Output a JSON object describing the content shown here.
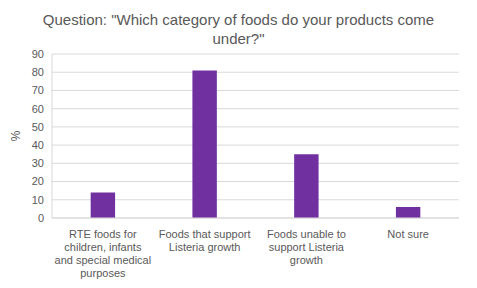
{
  "chart_data": {
    "type": "bar",
    "title": "Question: \"Which category of foods do your products come under?\"",
    "y_label": "%",
    "categories": [
      "RTE foods for children, infants and special medical purposes",
      "Foods that support Listeria growth",
      "Foods unable to support Listeria growth",
      "Not sure"
    ],
    "values": [
      14,
      81,
      35,
      6
    ],
    "color": "#7030a0",
    "ylim": [
      0,
      90
    ],
    "yticks": [
      0,
      10,
      20,
      30,
      40,
      50,
      60,
      70,
      80,
      90
    ],
    "grid": true
  }
}
